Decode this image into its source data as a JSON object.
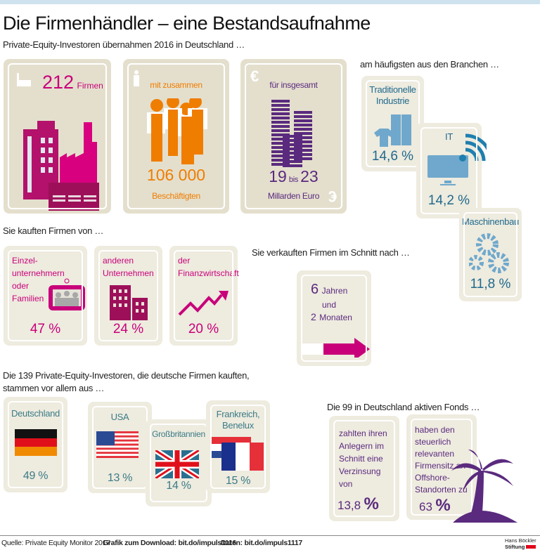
{
  "title": "Die Firmenhändler – eine Bestandsaufnahme",
  "subtitle": "Private-Equity-Investoren übernahmen 2016 in Deutschland …",
  "top_cards": {
    "firms": {
      "value": "212",
      "label": "Firmen"
    },
    "employees": {
      "intro": "mit zusammen",
      "value": "106 000",
      "label": "Beschäftigten"
    },
    "money": {
      "intro": "für insgesamt",
      "from": "19",
      "bis": "bis",
      "to": "23",
      "label": "Millarden Euro",
      "symbol": "€"
    }
  },
  "branches": {
    "heading": "am häufigsten aus den Branchen …",
    "items": [
      {
        "label1": "Traditionelle",
        "label2": "Industrie",
        "value": "14,6 %"
      },
      {
        "label1": "IT",
        "value": "14,2 %"
      },
      {
        "label1": "Maschinenbau",
        "value": "11,8 %"
      }
    ]
  },
  "sellers": {
    "heading": "Sie kauften Firmen von …",
    "items": [
      {
        "lines": [
          "Einzel-",
          "unternehmern",
          "oder",
          "Familien"
        ],
        "value": "47 %"
      },
      {
        "lines": [
          "anderen",
          "Unternehmen"
        ],
        "value": "24 %"
      },
      {
        "lines": [
          "der",
          "Finanzwirtschaft"
        ],
        "value": "20 %"
      }
    ]
  },
  "holding": {
    "heading": "Sie verkauften Firmen im Schnitt nach …",
    "years": "6",
    "years_label": "Jahren",
    "und": "und",
    "months": "2",
    "months_label": "Monaten"
  },
  "origin": {
    "heading1": "Die 139 Private-Equity-Investoren, die deutsche Firmen kauften,",
    "heading2": "stammen vor allem aus …",
    "items": [
      {
        "label1": "Deutschland",
        "value": "49 %"
      },
      {
        "label1": "USA",
        "value": "13 %"
      },
      {
        "label1": "Großbritannien",
        "value": "14 %"
      },
      {
        "label1": "Frankreich,",
        "label2": "Benelux",
        "value": "15 %"
      }
    ]
  },
  "funds": {
    "heading": "Die 99 in Deutschland aktiven Fonds …",
    "items": [
      {
        "lines": [
          "zahlten ihren",
          "Anlegern im",
          "Schnitt eine",
          "Verzinsung",
          "von"
        ],
        "value": "13,8",
        "unit": "%"
      },
      {
        "lines": [
          "haben den",
          "steuerlich",
          "relevanten",
          "Firmensitz an",
          "Offshore-",
          "Standorten zu"
        ],
        "value": "63",
        "unit": "%"
      }
    ]
  },
  "footer": {
    "source": "Quelle: Private Equity Monitor 2017",
    "download": "Grafik zum Download: bit.do/impuls1116",
    "data": "Daten: bit.do/impuls1117",
    "logo1": "Hans Böckler",
    "logo2": "Stiftung"
  },
  "colors": {
    "card": "#e4dfcd",
    "magenta": "#c8007a",
    "orange": "#ef7d00",
    "purple": "#5a2a7e",
    "blue": "#1f6a8c",
    "icon_blue": "#6fa8cc"
  }
}
